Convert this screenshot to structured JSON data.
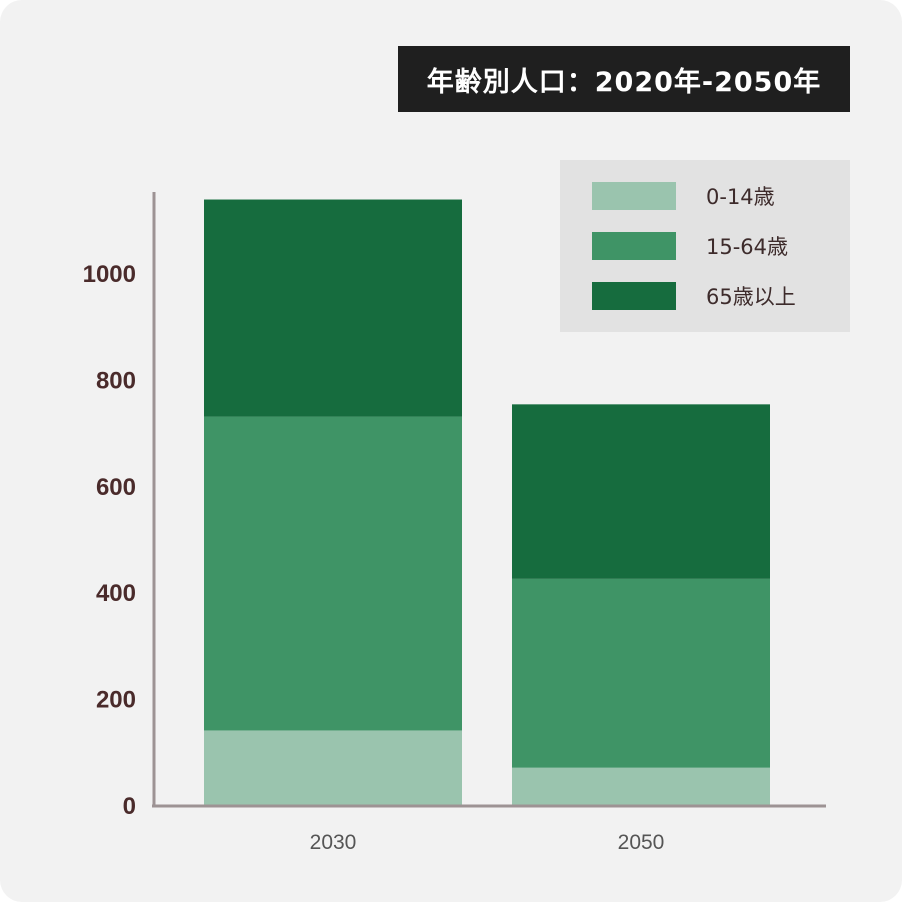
{
  "chart_data": {
    "type": "bar",
    "stacked": true,
    "title": "年齢別人口：2020年-2050年",
    "categories": [
      "2030",
      "2050"
    ],
    "series": [
      {
        "name": "0-14歳",
        "values": [
          142,
          72
        ],
        "color": "#9ac4ae"
      },
      {
        "name": "15-64歳",
        "values": [
          590,
          355
        ],
        "color": "#3f9466"
      },
      {
        "name": "65歳以上",
        "values": [
          408,
          328
        ],
        "color": "#166c3e"
      }
    ],
    "yticks": [
      "0",
      "200",
      "400",
      "600",
      "800",
      "1000"
    ],
    "ylim": [
      0,
      1100
    ],
    "grid": false,
    "legend_position": "top-right"
  }
}
